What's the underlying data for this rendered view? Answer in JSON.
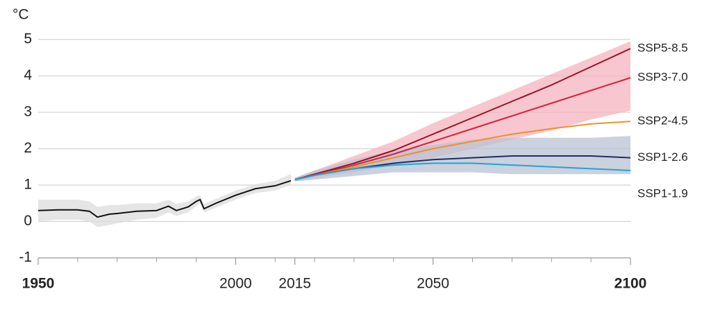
{
  "chart_data": {
    "type": "line",
    "y_label": "°C",
    "ylim": [
      -1,
      5
    ],
    "yticks": [
      -1,
      0,
      1,
      2,
      3,
      4,
      5
    ],
    "xlim": [
      1950,
      2100
    ],
    "xticks": [
      1950,
      2000,
      2015,
      2050,
      2100
    ],
    "x_minor_ticks": [
      1960,
      1970,
      1980,
      1990,
      2010,
      2020,
      2030,
      2040,
      2060,
      2070,
      2080,
      2090
    ],
    "grid": true,
    "bands": [
      {
        "color": "#dcdcdc",
        "x": [
          1950,
          1955,
          1960,
          1963,
          1965,
          1968,
          1970,
          1975,
          1980,
          1983,
          1985,
          1988,
          1990,
          1991,
          1992,
          1995,
          2000,
          2005,
          2010,
          2014
        ],
        "lower": [
          0.0,
          0.05,
          0.05,
          0.0,
          -0.15,
          -0.1,
          -0.05,
          0.05,
          0.1,
          0.25,
          0.15,
          0.25,
          0.42,
          0.5,
          0.25,
          0.38,
          0.6,
          0.78,
          0.85,
          1.0
        ],
        "upper": [
          0.6,
          0.6,
          0.6,
          0.55,
          0.4,
          0.45,
          0.45,
          0.5,
          0.5,
          0.6,
          0.48,
          0.55,
          0.68,
          0.72,
          0.48,
          0.62,
          0.85,
          1.02,
          1.12,
          1.3
        ]
      },
      {
        "color": "#f4b3bf",
        "x": [
          2015,
          2020,
          2030,
          2040,
          2050,
          2060,
          2070,
          2080,
          2090,
          2100
        ],
        "lower": [
          1.1,
          1.2,
          1.35,
          1.55,
          1.75,
          2.0,
          2.25,
          2.5,
          2.8,
          3.05
        ],
        "upper": [
          1.2,
          1.4,
          1.8,
          2.2,
          2.7,
          3.15,
          3.6,
          4.05,
          4.5,
          4.95
        ]
      },
      {
        "color": "#b9c2d3",
        "x": [
          2015,
          2020,
          2030,
          2040,
          2050,
          2060,
          2070,
          2080,
          2090,
          2100
        ],
        "lower": [
          1.1,
          1.15,
          1.25,
          1.35,
          1.35,
          1.35,
          1.3,
          1.3,
          1.3,
          1.3
        ],
        "upper": [
          1.2,
          1.4,
          1.7,
          1.95,
          2.1,
          2.25,
          2.3,
          2.3,
          2.3,
          2.35
        ]
      }
    ],
    "series": [
      {
        "color": "#111111",
        "x": [
          1950,
          1955,
          1960,
          1963,
          1965,
          1968,
          1970,
          1975,
          1980,
          1983,
          1985,
          1988,
          1990,
          1991,
          1992,
          1995,
          2000,
          2005,
          2010,
          2014
        ],
        "values": [
          0.3,
          0.32,
          0.32,
          0.28,
          0.12,
          0.2,
          0.22,
          0.28,
          0.3,
          0.42,
          0.3,
          0.4,
          0.55,
          0.6,
          0.35,
          0.5,
          0.72,
          0.9,
          0.98,
          1.12
        ]
      },
      {
        "name": "SSP5-8.5",
        "color": "#9b0f24",
        "x": [
          2015,
          2020,
          2030,
          2040,
          2050,
          2060,
          2070,
          2080,
          2090,
          2100
        ],
        "values": [
          1.15,
          1.3,
          1.6,
          1.95,
          2.4,
          2.85,
          3.3,
          3.75,
          4.25,
          4.75
        ]
      },
      {
        "name": "SSP3-7.0",
        "color": "#d8213b",
        "x": [
          2015,
          2020,
          2030,
          2040,
          2050,
          2060,
          2070,
          2080,
          2090,
          2100
        ],
        "values": [
          1.15,
          1.28,
          1.55,
          1.85,
          2.2,
          2.55,
          2.9,
          3.25,
          3.6,
          3.95
        ]
      },
      {
        "name": "SSP2-4.5",
        "color": "#ef8f28",
        "x": [
          2015,
          2020,
          2030,
          2040,
          2050,
          2060,
          2070,
          2080,
          2090,
          2100
        ],
        "values": [
          1.15,
          1.27,
          1.5,
          1.75,
          2.0,
          2.2,
          2.4,
          2.55,
          2.68,
          2.75
        ]
      },
      {
        "name": "SSP1-2.6",
        "color": "#1d2f5f",
        "x": [
          2015,
          2020,
          2030,
          2040,
          2050,
          2060,
          2070,
          2080,
          2090,
          2100
        ],
        "values": [
          1.15,
          1.27,
          1.45,
          1.6,
          1.7,
          1.75,
          1.8,
          1.8,
          1.8,
          1.75
        ]
      },
      {
        "name": "SSP1-1.9",
        "color": "#1ea5d4",
        "x": [
          2015,
          2020,
          2030,
          2040,
          2050,
          2060,
          2070,
          2080,
          2090,
          2100
        ],
        "values": [
          1.15,
          1.27,
          1.45,
          1.55,
          1.6,
          1.6,
          1.55,
          1.5,
          1.45,
          1.4
        ]
      }
    ]
  }
}
